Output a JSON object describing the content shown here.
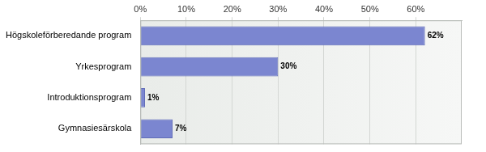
{
  "chart_data": {
    "type": "bar",
    "orientation": "horizontal",
    "categories": [
      "Högskoleförberedande program",
      "Yrkesprogram",
      "Introduktionsprogram",
      "Gymnasiesärskola"
    ],
    "values": [
      62,
      30,
      1,
      7
    ],
    "value_labels": [
      "62%",
      "30%",
      "1%",
      "7%"
    ],
    "data_labels": true,
    "color": "#7b86d0",
    "xlim": [
      0,
      70
    ],
    "xticks": [
      {
        "value": 0,
        "label": "0%"
      },
      {
        "value": 10,
        "label": "10%"
      },
      {
        "value": 20,
        "label": "20%"
      },
      {
        "value": 30,
        "label": "30%"
      },
      {
        "value": 40,
        "label": "40%"
      },
      {
        "value": 50,
        "label": "50%"
      },
      {
        "value": 60,
        "label": "60%"
      }
    ],
    "grid": true
  }
}
